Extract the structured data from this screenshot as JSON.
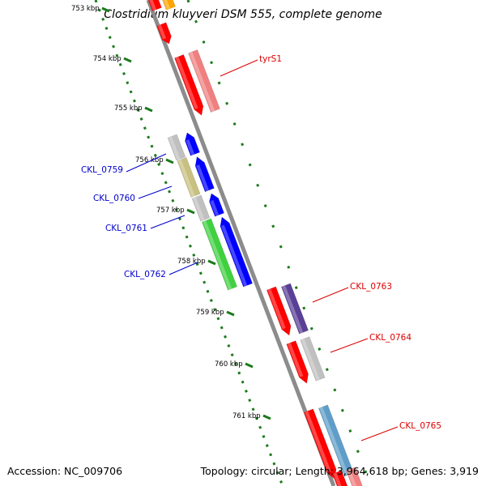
{
  "title": "Clostridium kluyveri DSM 555, complete genome",
  "footer": {
    "accession": "Accession: NC_009706",
    "summary": "Topology: circular; Length: 3,964,618 bp; Genes: 3,919"
  },
  "colors": {
    "background": "#ffffff",
    "backbone": "#8c8c8c",
    "ruler_ticks": "#1a7a1a",
    "forward_cds": "#0000ff",
    "reverse_cds": "#ff0000",
    "forward_label": "#0000cc",
    "reverse_label": "#dd0000"
  },
  "ruler": {
    "unit": "kbp",
    "labels": [
      "753 kbp",
      "754 kbp",
      "755 kbp",
      "756 kbp",
      "757 kbp",
      "758 kbp",
      "759 kbp",
      "760 kbp",
      "761 kbp"
    ]
  },
  "genes": [
    {
      "label": "tyrS1",
      "strand": "reverse",
      "color": "#ff0000",
      "cog_color": "#f08080",
      "cog_length_bp": 700
    },
    {
      "label": "CKL_0759",
      "strand": "forward",
      "color": "#0000ff",
      "cog_color": "#c0c0c0",
      "cog_length_bp": 330
    },
    {
      "label": "CKL_0760",
      "strand": "forward",
      "color": "#0000ff",
      "cog_color": "#c8c080",
      "cog_length_bp": 530
    },
    {
      "label": "CKL_0761",
      "strand": "forward",
      "color": "#0000ff",
      "cog_color": "#c0c0c0",
      "cog_length_bp": 330
    },
    {
      "label": "CKL_0762",
      "strand": "forward",
      "color": "#0000ff",
      "cog_color": "#40d040",
      "cog_length_bp": 1040
    },
    {
      "label": "CKL_0763",
      "strand": "reverse",
      "color": "#ff0000",
      "cog_color": "#5a3f96",
      "cog_length_bp": 650
    },
    {
      "label": "CKL_0764",
      "strand": "reverse",
      "color": "#ff0000",
      "cog_color": "#c0c0c0",
      "cog_length_bp": 600
    },
    {
      "label": "CKL_0765",
      "strand": "reverse",
      "color": "#ff0000",
      "cog_color": "#5f9ec8",
      "cog_length_bp": 1000
    }
  ],
  "partial_features": [
    {
      "strand": "reverse",
      "color": "#ff0000",
      "cog_color": "#ffa500"
    }
  ]
}
